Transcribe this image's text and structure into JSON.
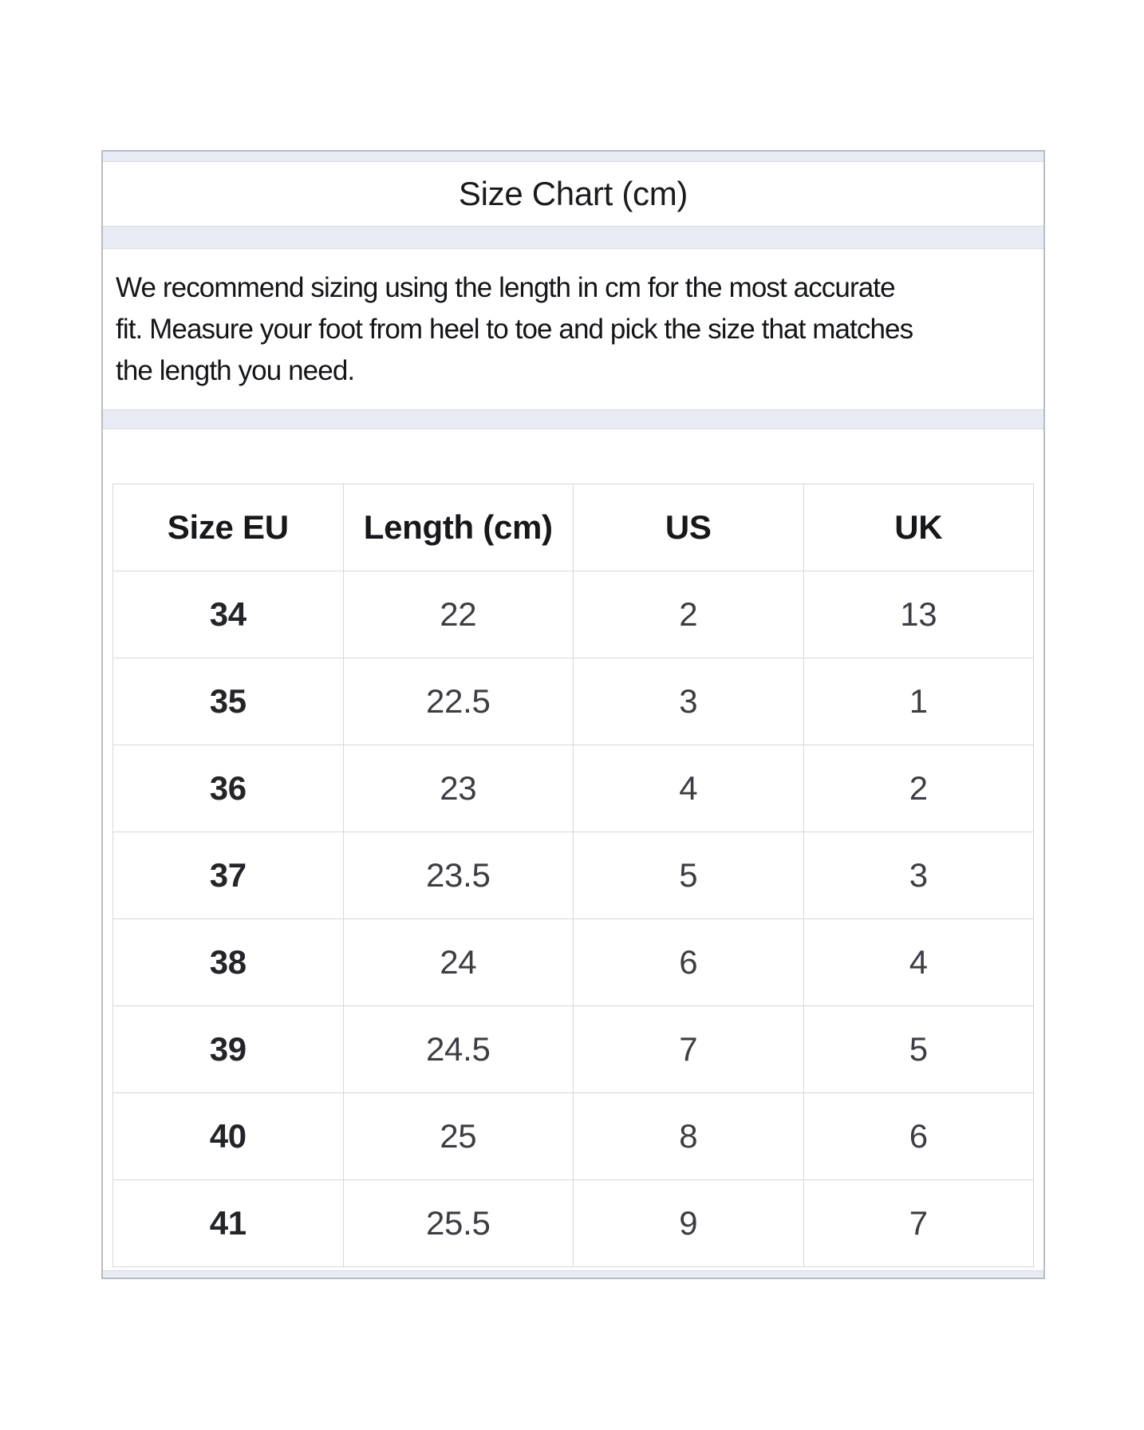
{
  "card": {
    "title": "Size Chart (cm)",
    "description": {
      "lines": [
        "We recommend sizing using the length in cm for the most accurate",
        "fit. Measure your foot from heel to toe and pick the size that matches",
        "the length you need."
      ]
    },
    "table": {
      "columns": [
        "Size EU",
        "Length (cm)",
        "US",
        "UK"
      ],
      "rows": [
        [
          "34",
          "22",
          "2",
          "13"
        ],
        [
          "35",
          "22.5",
          "3",
          "1"
        ],
        [
          "36",
          "23",
          "4",
          "2"
        ],
        [
          "37",
          "23.5",
          "5",
          "3"
        ],
        [
          "38",
          "24",
          "6",
          "4"
        ],
        [
          "39",
          "24.5",
          "7",
          "5"
        ],
        [
          "40",
          "25",
          "8",
          "6"
        ],
        [
          "41",
          "25.5",
          "9",
          "7"
        ]
      ]
    }
  },
  "colors": {
    "card_background_band": "#e8ebf4",
    "card_border": "#b8bcc5",
    "section_border": "#d9dbe0",
    "table_border": "#d7d8db",
    "title_text": "#1a1b1e",
    "body_text": "#131519",
    "header_text": "#17181b",
    "cell_text": "#3c3e44",
    "cell_bold_text": "#232529"
  }
}
